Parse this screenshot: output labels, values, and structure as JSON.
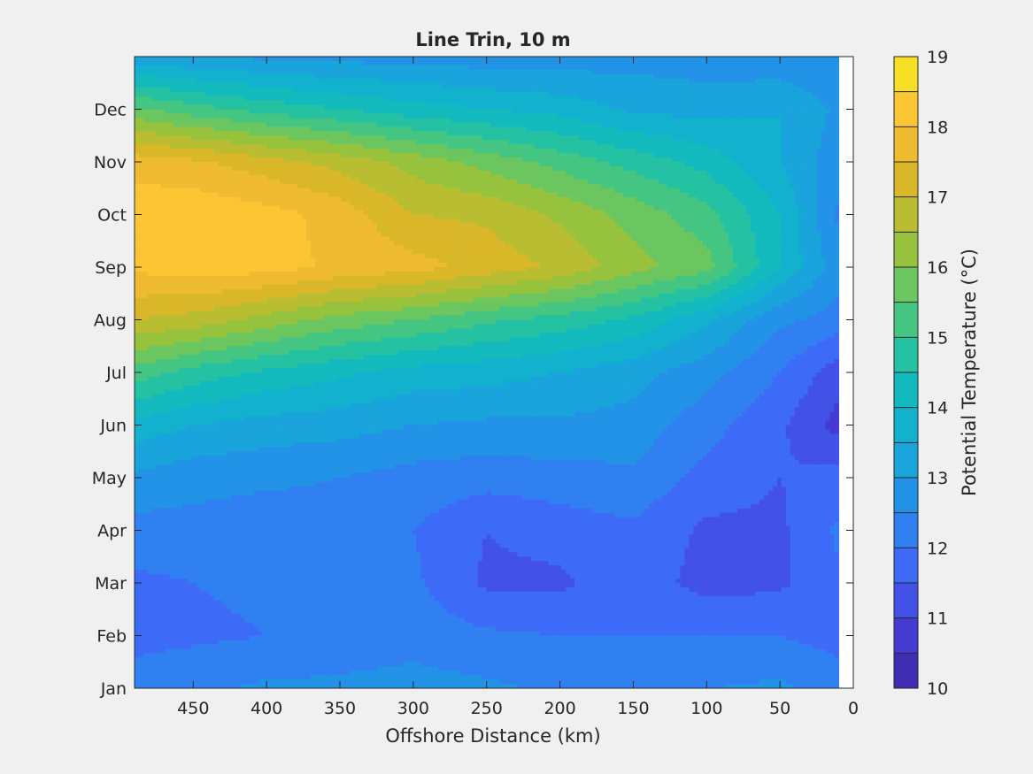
{
  "chart_data": {
    "type": "contourf",
    "title": "Line Trin, 10 m",
    "xlabel": "Offshore Distance (km)",
    "ylabel": "",
    "x_ticks": [
      450,
      400,
      350,
      300,
      250,
      200,
      150,
      100,
      50,
      0
    ],
    "xlim": [
      490,
      0
    ],
    "x_reversed": true,
    "y_ticks": [
      "Jan",
      "Feb",
      "Mar",
      "Apr",
      "May",
      "Jun",
      "Jul",
      "Aug",
      "Sep",
      "Oct",
      "Nov",
      "Dec"
    ],
    "ylim_months": [
      0,
      12
    ],
    "colorbar": {
      "label": "Potential Temperature (°C)",
      "ticks": [
        10,
        11,
        12,
        13,
        14,
        15,
        16,
        17,
        18,
        19
      ],
      "range": [
        10,
        19
      ],
      "step": 0.5,
      "colormap": "parula"
    },
    "data_coverage_x_km": [
      490,
      10
    ],
    "grid": false,
    "field": {
      "description": "Gridded 10 m potential temperature by month (columns: offshore distance km, rows: month index)",
      "x_km": [
        490,
        450,
        400,
        350,
        300,
        250,
        200,
        150,
        100,
        50,
        10
      ],
      "month_index": [
        0,
        1,
        2,
        3,
        4,
        5,
        6,
        7,
        8,
        9,
        10,
        11,
        12
      ],
      "values": [
        [
          12.3,
          12.4,
          12.6,
          12.6,
          12.7,
          12.6,
          12.4,
          12.4,
          12.5,
          12.6,
          12.3
        ],
        [
          11.8,
          11.9,
          12.0,
          12.2,
          12.3,
          12.1,
          12.0,
          12.0,
          12.0,
          12.0,
          11.8
        ],
        [
          11.9,
          12.0,
          12.1,
          12.2,
          12.1,
          11.4,
          11.4,
          11.8,
          11.3,
          11.4,
          11.9
        ],
        [
          12.3,
          12.3,
          12.2,
          12.3,
          12.0,
          11.5,
          11.7,
          11.9,
          11.4,
          11.4,
          12.1
        ],
        [
          12.9,
          12.7,
          12.6,
          12.5,
          12.3,
          12.2,
          12.3,
          12.4,
          11.8,
          11.5,
          11.7
        ],
        [
          13.8,
          13.5,
          13.3,
          13.2,
          13.0,
          12.9,
          12.9,
          12.8,
          12.2,
          11.6,
          10.8
        ],
        [
          15.3,
          14.8,
          14.4,
          14.1,
          13.8,
          13.7,
          13.5,
          13.2,
          12.7,
          12.0,
          11.2
        ],
        [
          17.0,
          16.8,
          16.3,
          15.8,
          15.5,
          15.1,
          14.8,
          14.4,
          13.6,
          12.6,
          12.3
        ],
        [
          18.1,
          18.3,
          18.2,
          17.9,
          17.7,
          17.3,
          16.9,
          16.2,
          15.7,
          14.0,
          12.7
        ],
        [
          18.3,
          18.4,
          18.2,
          17.8,
          17.0,
          16.9,
          16.4,
          15.8,
          15.2,
          14.0,
          12.4
        ],
        [
          17.8,
          17.6,
          17.2,
          16.8,
          16.3,
          15.8,
          15.3,
          14.8,
          14.3,
          13.5,
          12.7
        ],
        [
          15.6,
          15.2,
          14.8,
          14.5,
          14.2,
          14.0,
          13.8,
          13.4,
          13.3,
          13.5,
          12.9
        ],
        [
          13.2,
          13.0,
          12.9,
          12.8,
          12.8,
          12.7,
          12.7,
          12.8,
          12.7,
          12.6,
          12.5
        ]
      ]
    }
  }
}
